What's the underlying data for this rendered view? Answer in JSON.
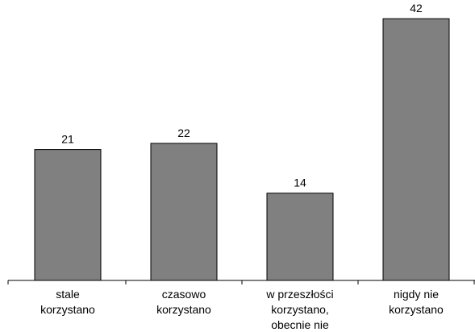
{
  "chart_data": {
    "type": "bar",
    "categories": [
      [
        "stale",
        "korzystano"
      ],
      [
        "czasowo",
        "korzystano"
      ],
      [
        "w przeszłości",
        "korzystano,",
        "obecnie nie"
      ],
      [
        "nigdy nie",
        "korzystano"
      ]
    ],
    "values": [
      21,
      22,
      14,
      42
    ],
    "data_labels": [
      "21",
      "22",
      "14",
      "42"
    ],
    "title": "",
    "xlabel": "",
    "ylabel": "",
    "ylim": [
      0,
      45
    ],
    "grid": false,
    "legend": "none",
    "colors": {
      "bar_fill": "#808080",
      "bar_stroke": "#000000",
      "axis": "#000000",
      "text": "#000000"
    }
  }
}
